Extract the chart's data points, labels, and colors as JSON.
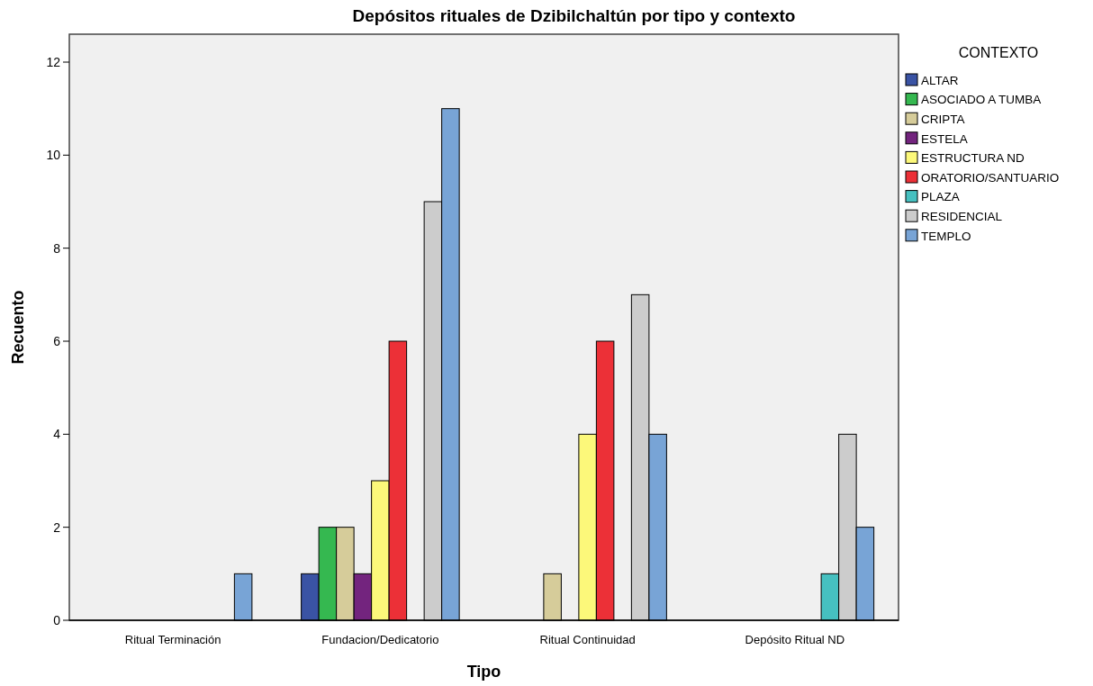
{
  "chart_data": {
    "type": "bar",
    "title": "Depósitos rituales de Dzibilchaltún por tipo y contexto",
    "xlabel": "Tipo",
    "ylabel": "Recuento",
    "legend_title": "CONTEXTO",
    "legend": "top right",
    "grid": false,
    "categories": [
      "Ritual Terminación",
      "Fundacion/Dedicatorio",
      "Ritual Continuidad",
      "Depósito Ritual ND"
    ],
    "ylim": [
      0,
      12.6
    ],
    "yticks": [
      0,
      2,
      4,
      6,
      8,
      10,
      12
    ],
    "series": [
      {
        "name": "ALTAR",
        "color": "#3a53a4",
        "values": [
          null,
          1,
          null,
          null
        ]
      },
      {
        "name": "ASOCIADO A TUMBA",
        "color": "#35b850",
        "values": [
          null,
          2,
          null,
          null
        ]
      },
      {
        "name": "CRIPTA",
        "color": "#d6cc9a",
        "values": [
          null,
          2,
          1,
          null
        ]
      },
      {
        "name": "ESTELA",
        "color": "#73247e",
        "values": [
          null,
          1,
          null,
          null
        ]
      },
      {
        "name": "ESTRUCTURA ND",
        "color": "#fcf87a",
        "values": [
          null,
          3,
          4,
          null
        ]
      },
      {
        "name": "ORATORIO/SANTUARIO",
        "color": "#ec3037",
        "values": [
          null,
          6,
          6,
          null
        ]
      },
      {
        "name": "PLAZA",
        "color": "#46c0c0",
        "values": [
          null,
          null,
          null,
          1
        ]
      },
      {
        "name": "RESIDENCIAL",
        "color": "#cccccc",
        "values": [
          null,
          9,
          7,
          4
        ]
      },
      {
        "name": "TEMPLO",
        "color": "#78a4d6",
        "values": [
          1,
          11,
          4,
          2
        ]
      }
    ]
  }
}
